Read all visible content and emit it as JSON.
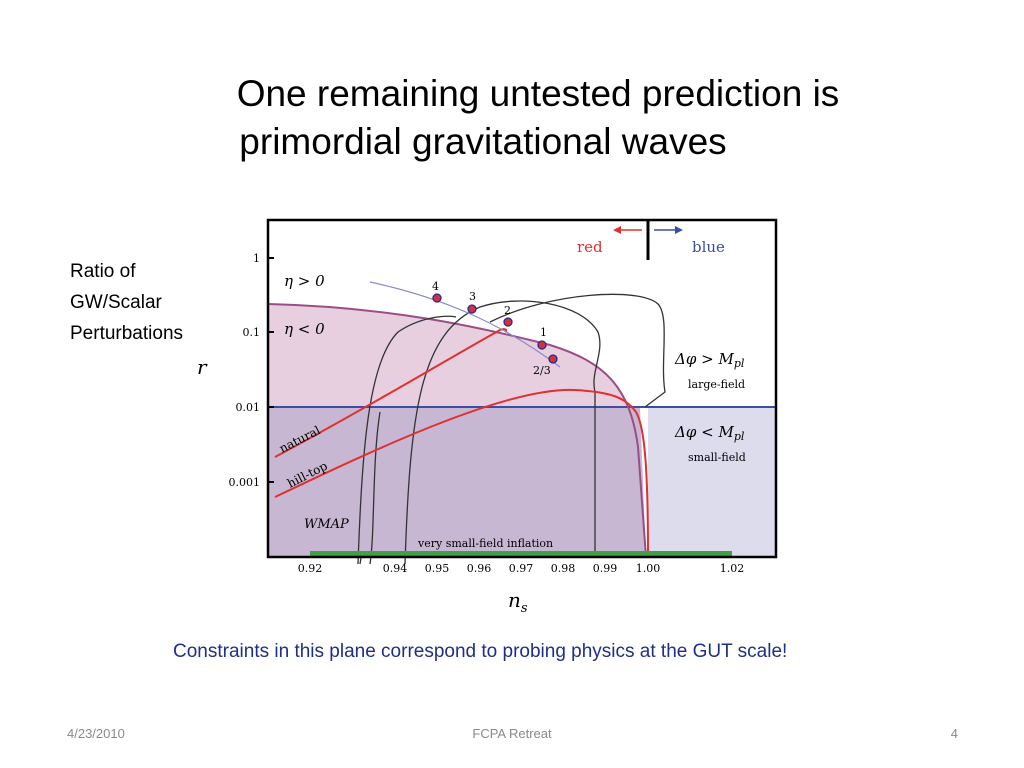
{
  "slide": {
    "title_line1": "One remaining untested prediction is",
    "title_line2": "primordial gravitational waves",
    "caption": "Constraints in this plane correspond to probing physics at the GUT scale!"
  },
  "ylabel": {
    "lines": [
      "Ratio of",
      "GW/Scalar",
      "Perturbations"
    ],
    "symbol": "r"
  },
  "xlabel": {
    "symbol": "n",
    "subscript": "s"
  },
  "footer": {
    "date": "4/23/2010",
    "center": "FCPA Retreat",
    "page": "4"
  },
  "colors": {
    "red": "#e03030",
    "blue": "#3a4fa3",
    "pink_fill": "#e7cfdf",
    "purple_fill": "#c8b7d3",
    "blue_fill": "#dcdcec",
    "green": "#3fa046",
    "caption": "#1f2f86"
  },
  "chart_data": {
    "type": "line",
    "x_ticks": [
      "0.92",
      "0.94",
      "0.95",
      "0.96",
      "0.97",
      "0.98",
      "0.99",
      "1.00",
      "1.02"
    ],
    "y_ticks": [
      "1",
      "0.1",
      "0.01",
      "0.001"
    ],
    "y_scale": "log",
    "labels": {
      "red": "red",
      "blue": "blue",
      "eta_pos": "η > 0",
      "eta_neg": "η < 0",
      "large_field_cond": "Δφ > M",
      "large_field_sub": "pl",
      "large_field": "large-field",
      "small_field_cond": "Δφ < M",
      "small_field_sub": "pl",
      "small_field": "small-field",
      "natural": "natural",
      "hilltop": "hill-top",
      "wmap": "WMAP",
      "very_small": "very small-field inflation"
    },
    "points": [
      {
        "label": "4",
        "ns": 0.95,
        "r": 0.27
      },
      {
        "label": "3",
        "ns": 0.958,
        "r": 0.2
      },
      {
        "label": "2",
        "ns": 0.967,
        "r": 0.13
      },
      {
        "label": "1",
        "ns": 0.975,
        "r": 0.07
      },
      {
        "label": "2/3",
        "ns": 0.978,
        "r": 0.048
      }
    ]
  }
}
